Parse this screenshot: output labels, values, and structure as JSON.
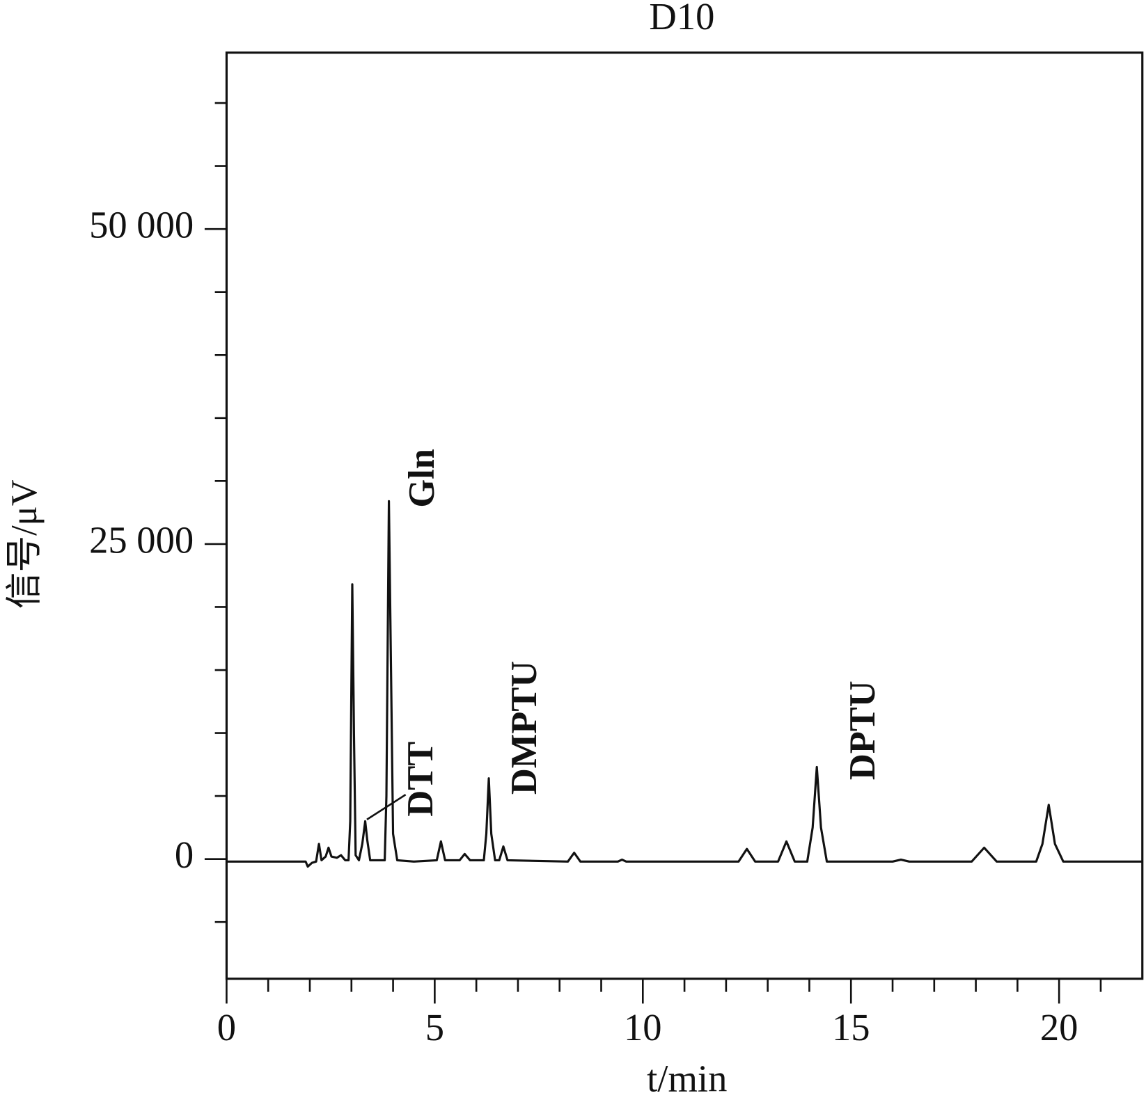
{
  "chart_data": {
    "type": "line",
    "title": "D10",
    "x_label": "t/min",
    "y_label": "信号/μV",
    "annotations": [
      "Gln",
      "DTT",
      "DMPTU",
      "DPTU"
    ],
    "color": "#111111",
    "xlim": [
      0,
      22
    ],
    "xticks": [
      0,
      5,
      10,
      15,
      20
    ],
    "x_minor_ticks": [
      1,
      2,
      3,
      4,
      6,
      7,
      8,
      9,
      11,
      12,
      13,
      14,
      16,
      17,
      18,
      19,
      21
    ],
    "ylim": [
      -9500,
      64000
    ],
    "yticks": [
      0,
      {
        "value": 25000,
        "label": "25 000"
      },
      {
        "value": 50000,
        "label": "50 000"
      }
    ],
    "y_minor_ticks": [
      -5000,
      5000,
      10000,
      15000,
      20000,
      30000,
      35000,
      40000,
      45000,
      55000,
      60000
    ],
    "x": [
      0,
      1.9,
      1.95,
      2.05,
      2.15,
      2.22,
      2.28,
      2.38,
      2.45,
      2.52,
      2.65,
      2.75,
      2.85,
      2.93,
      2.97,
      3.02,
      3.06,
      3.1,
      3.18,
      3.26,
      3.33,
      3.38,
      3.45,
      3.8,
      3.84,
      3.9,
      3.95,
      4.0,
      4.1,
      4.5,
      5.05,
      5.15,
      5.25,
      5.6,
      5.72,
      5.85,
      6.18,
      6.24,
      6.3,
      6.36,
      6.45,
      6.55,
      6.65,
      6.75,
      8.2,
      8.35,
      8.5,
      9.4,
      9.5,
      9.6,
      12.3,
      12.5,
      12.7,
      13.25,
      13.45,
      13.65,
      13.95,
      14.08,
      14.18,
      14.28,
      14.42,
      16.0,
      16.2,
      16.4,
      17.9,
      18.2,
      18.5,
      19.45,
      19.6,
      19.75,
      19.9,
      20.1,
      22
    ],
    "values": [
      -200,
      -200,
      -600,
      -300,
      -200,
      1200,
      -100,
      200,
      900,
      200,
      100,
      300,
      -100,
      -100,
      3000,
      21800,
      10000,
      300,
      -100,
      1200,
      3000,
      1500,
      -100,
      -100,
      5000,
      28400,
      15000,
      2000,
      -100,
      -200,
      -100,
      1400,
      -100,
      -100,
      400,
      -100,
      -100,
      2000,
      6400,
      2000,
      -100,
      -100,
      1000,
      -100,
      -200,
      500,
      -200,
      -200,
      -50,
      -200,
      -200,
      800,
      -200,
      -200,
      1400,
      -200,
      -200,
      2500,
      7300,
      2500,
      -200,
      -200,
      -50,
      -200,
      -200,
      900,
      -200,
      -200,
      1200,
      4300,
      1200,
      -200,
      -200
    ]
  }
}
